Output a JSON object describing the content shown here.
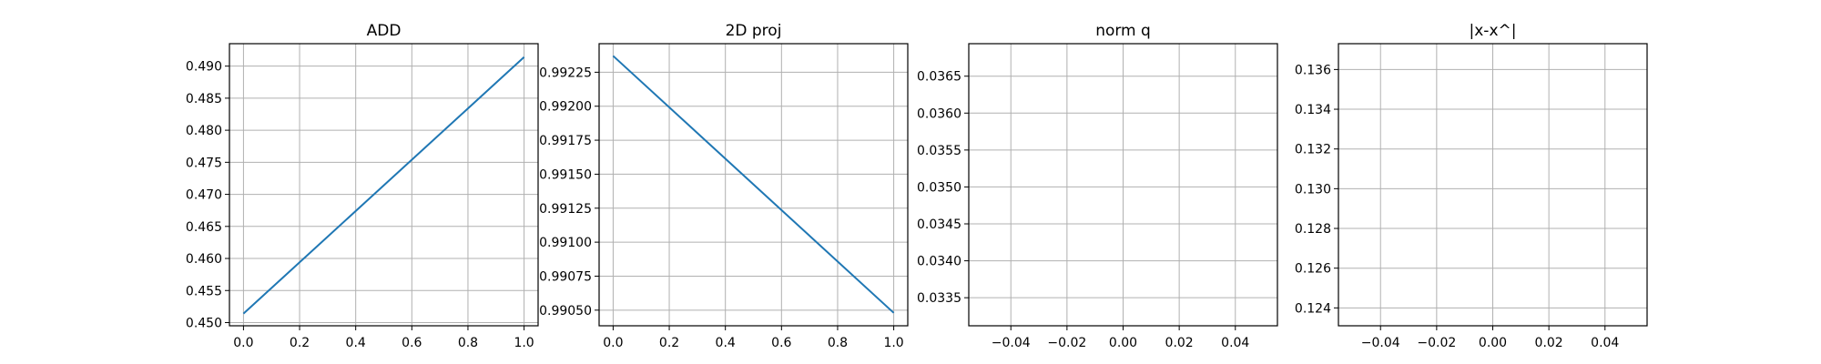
{
  "chart_data": [
    {
      "type": "line",
      "title": "ADD",
      "xlabel": "",
      "ylabel": "",
      "xlim": [
        -0.05,
        1.05
      ],
      "ylim": [
        0.4495,
        0.4935
      ],
      "xticks": [
        0.0,
        0.2,
        0.4,
        0.6,
        0.8,
        1.0
      ],
      "xtick_labels": [
        "0.0",
        "0.2",
        "0.4",
        "0.6",
        "0.8",
        "1.0"
      ],
      "yticks": [
        0.45,
        0.455,
        0.46,
        0.465,
        0.47,
        0.475,
        0.48,
        0.485,
        0.49
      ],
      "ytick_labels": [
        "0.450",
        "0.455",
        "0.460",
        "0.465",
        "0.470",
        "0.475",
        "0.480",
        "0.485",
        "0.490"
      ],
      "grid": true,
      "series": [
        {
          "color": "#1f77b4",
          "x": [
            0.0,
            1.0
          ],
          "y": [
            0.4514,
            0.4914
          ]
        }
      ]
    },
    {
      "type": "line",
      "title": "2D proj",
      "xlabel": "",
      "ylabel": "",
      "xlim": [
        -0.05,
        1.05
      ],
      "ylim": [
        0.990385,
        0.99246
      ],
      "xticks": [
        0.0,
        0.2,
        0.4,
        0.6,
        0.8,
        1.0
      ],
      "xtick_labels": [
        "0.0",
        "0.2",
        "0.4",
        "0.6",
        "0.8",
        "1.0"
      ],
      "yticks": [
        0.9905,
        0.99075,
        0.991,
        0.99125,
        0.9915,
        0.99175,
        0.992,
        0.99225
      ],
      "ytick_labels": [
        "0.99050",
        "0.99075",
        "0.99100",
        "0.99125",
        "0.99150",
        "0.99175",
        "0.99200",
        "0.99225"
      ],
      "grid": true,
      "series": [
        {
          "color": "#1f77b4",
          "x": [
            0.0,
            1.0
          ],
          "y": [
            0.99237,
            0.99048
          ]
        }
      ]
    },
    {
      "type": "line",
      "title": "norm q",
      "xlabel": "",
      "ylabel": "",
      "xlim": [
        -0.055,
        0.055
      ],
      "ylim": [
        0.03312,
        0.03694
      ],
      "xticks": [
        -0.04,
        -0.02,
        0.0,
        0.02,
        0.04
      ],
      "xtick_labels": [
        "−0.04",
        "−0.02",
        "0.00",
        "0.02",
        "0.04"
      ],
      "yticks": [
        0.0335,
        0.034,
        0.0345,
        0.035,
        0.0355,
        0.036,
        0.0365
      ],
      "ytick_labels": [
        "0.0335",
        "0.0340",
        "0.0345",
        "0.0350",
        "0.0355",
        "0.0360",
        "0.0365"
      ],
      "grid": true,
      "series": []
    },
    {
      "type": "line",
      "title": "|x-x^|",
      "xlabel": "",
      "ylabel": "",
      "xlim": [
        -0.055,
        0.055
      ],
      "ylim": [
        0.1231,
        0.1373
      ],
      "xticks": [
        -0.04,
        -0.02,
        0.0,
        0.02,
        0.04
      ],
      "xtick_labels": [
        "−0.04",
        "−0.02",
        "0.00",
        "0.02",
        "0.04"
      ],
      "yticks": [
        0.124,
        0.126,
        0.128,
        0.13,
        0.132,
        0.134,
        0.136
      ],
      "ytick_labels": [
        "0.124",
        "0.126",
        "0.128",
        "0.130",
        "0.132",
        "0.134",
        "0.136"
      ],
      "grid": true,
      "series": []
    }
  ]
}
